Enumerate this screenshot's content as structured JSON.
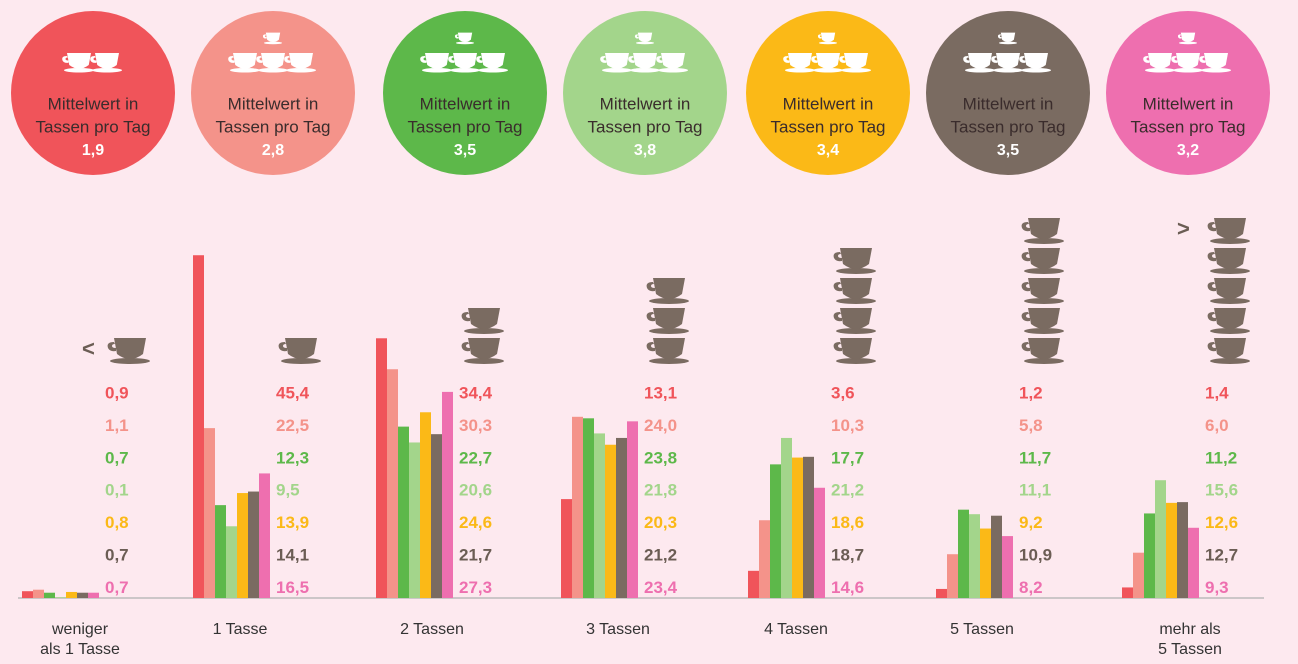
{
  "chart_data": {
    "type": "bar",
    "caption_lines": [
      "Mittelwert in",
      "Tassen pro Tag"
    ],
    "less_symbol": "<",
    "more_symbol": ">",
    "categories": [
      "weniger als 1 Tasse",
      "1 Tasse",
      "2 Tassen",
      "3 Tassen",
      "4 Tassen",
      "5 Tassen",
      "mehr als 5 Tassen"
    ],
    "series": [
      {
        "color": "#f0545a",
        "mean": 1.9,
        "mean_label": "1,9",
        "values": [
          0.9,
          45.4,
          34.4,
          13.1,
          3.6,
          1.2,
          1.4
        ],
        "value_labels": [
          "0,9",
          "45,4",
          "34,4",
          "13,1",
          "3,6",
          "1,2",
          "1,4"
        ]
      },
      {
        "color": "#f4938a",
        "mean": 2.8,
        "mean_label": "2,8",
        "values": [
          1.1,
          22.5,
          30.3,
          24.0,
          10.3,
          5.8,
          6.0
        ],
        "value_labels": [
          "1,1",
          "22,5",
          "30,3",
          "24,0",
          "10,3",
          "5,8",
          "6,0"
        ]
      },
      {
        "color": "#5db84a",
        "mean": 3.5,
        "mean_label": "3,5",
        "values": [
          0.7,
          12.3,
          22.7,
          23.8,
          17.7,
          11.7,
          11.2
        ],
        "value_labels": [
          "0,7",
          "12,3",
          "22,7",
          "23,8",
          "17,7",
          "11,7",
          "11,2"
        ]
      },
      {
        "color": "#a3d58b",
        "mean": 3.8,
        "mean_label": "3,8",
        "values": [
          0.1,
          9.5,
          20.6,
          21.8,
          21.2,
          11.1,
          15.6
        ],
        "value_labels": [
          "0,1",
          "9,5",
          "20,6",
          "21,8",
          "21,2",
          "11,1",
          "15,6"
        ]
      },
      {
        "color": "#fbb917",
        "mean": 3.4,
        "mean_label": "3,4",
        "values": [
          0.8,
          13.9,
          24.6,
          20.3,
          18.6,
          9.2,
          12.6
        ],
        "value_labels": [
          "0,8",
          "13,9",
          "24,6",
          "20,3",
          "18,6",
          "9,2",
          "12,6"
        ]
      },
      {
        "color": "#7a6b61",
        "mean": 3.5,
        "mean_label": "3,5",
        "values": [
          0.7,
          14.1,
          21.7,
          21.2,
          18.7,
          10.9,
          12.7
        ],
        "value_labels": [
          "0,7",
          "14,1",
          "21,7",
          "21,2",
          "18,7",
          "10,9",
          "12,7"
        ]
      },
      {
        "color": "#ee6faf",
        "mean": 3.2,
        "mean_label": "3,2",
        "values": [
          0.7,
          16.5,
          27.3,
          23.4,
          14.6,
          8.2,
          9.3
        ],
        "value_labels": [
          "0,7",
          "16,5",
          "27,3",
          "23,4",
          "14,6",
          "8,2",
          "9,3"
        ]
      }
    ]
  }
}
